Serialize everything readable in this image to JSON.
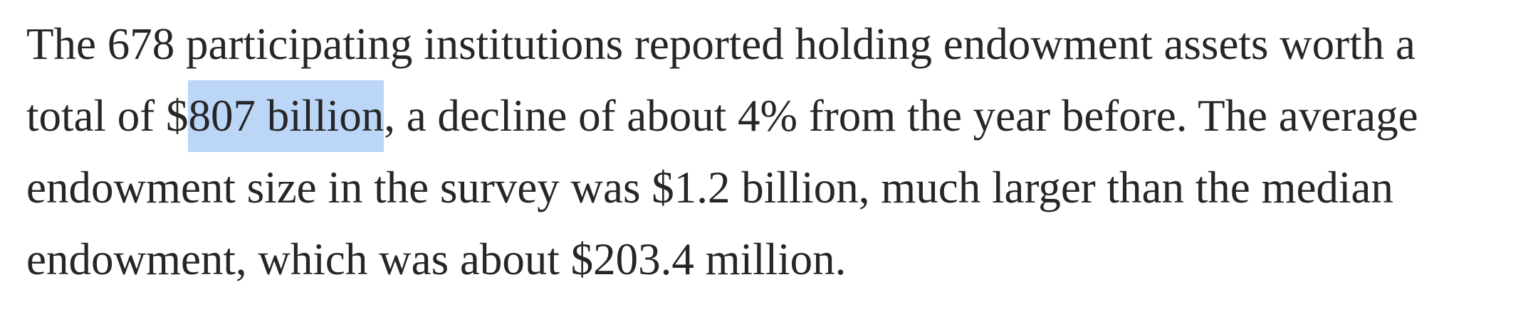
{
  "paragraph": {
    "lines": [
      [
        "The 678 participating institutions reported holding endowment assets worth a"
      ],
      [
        "total of $",
        "807 billion",
        ", a decline of about 4% from the year before. The average"
      ],
      [
        "endowment size in the survey was $1.2 billion, much larger than the median"
      ],
      [
        "endowment, which was about $203.4 million."
      ]
    ]
  }
}
